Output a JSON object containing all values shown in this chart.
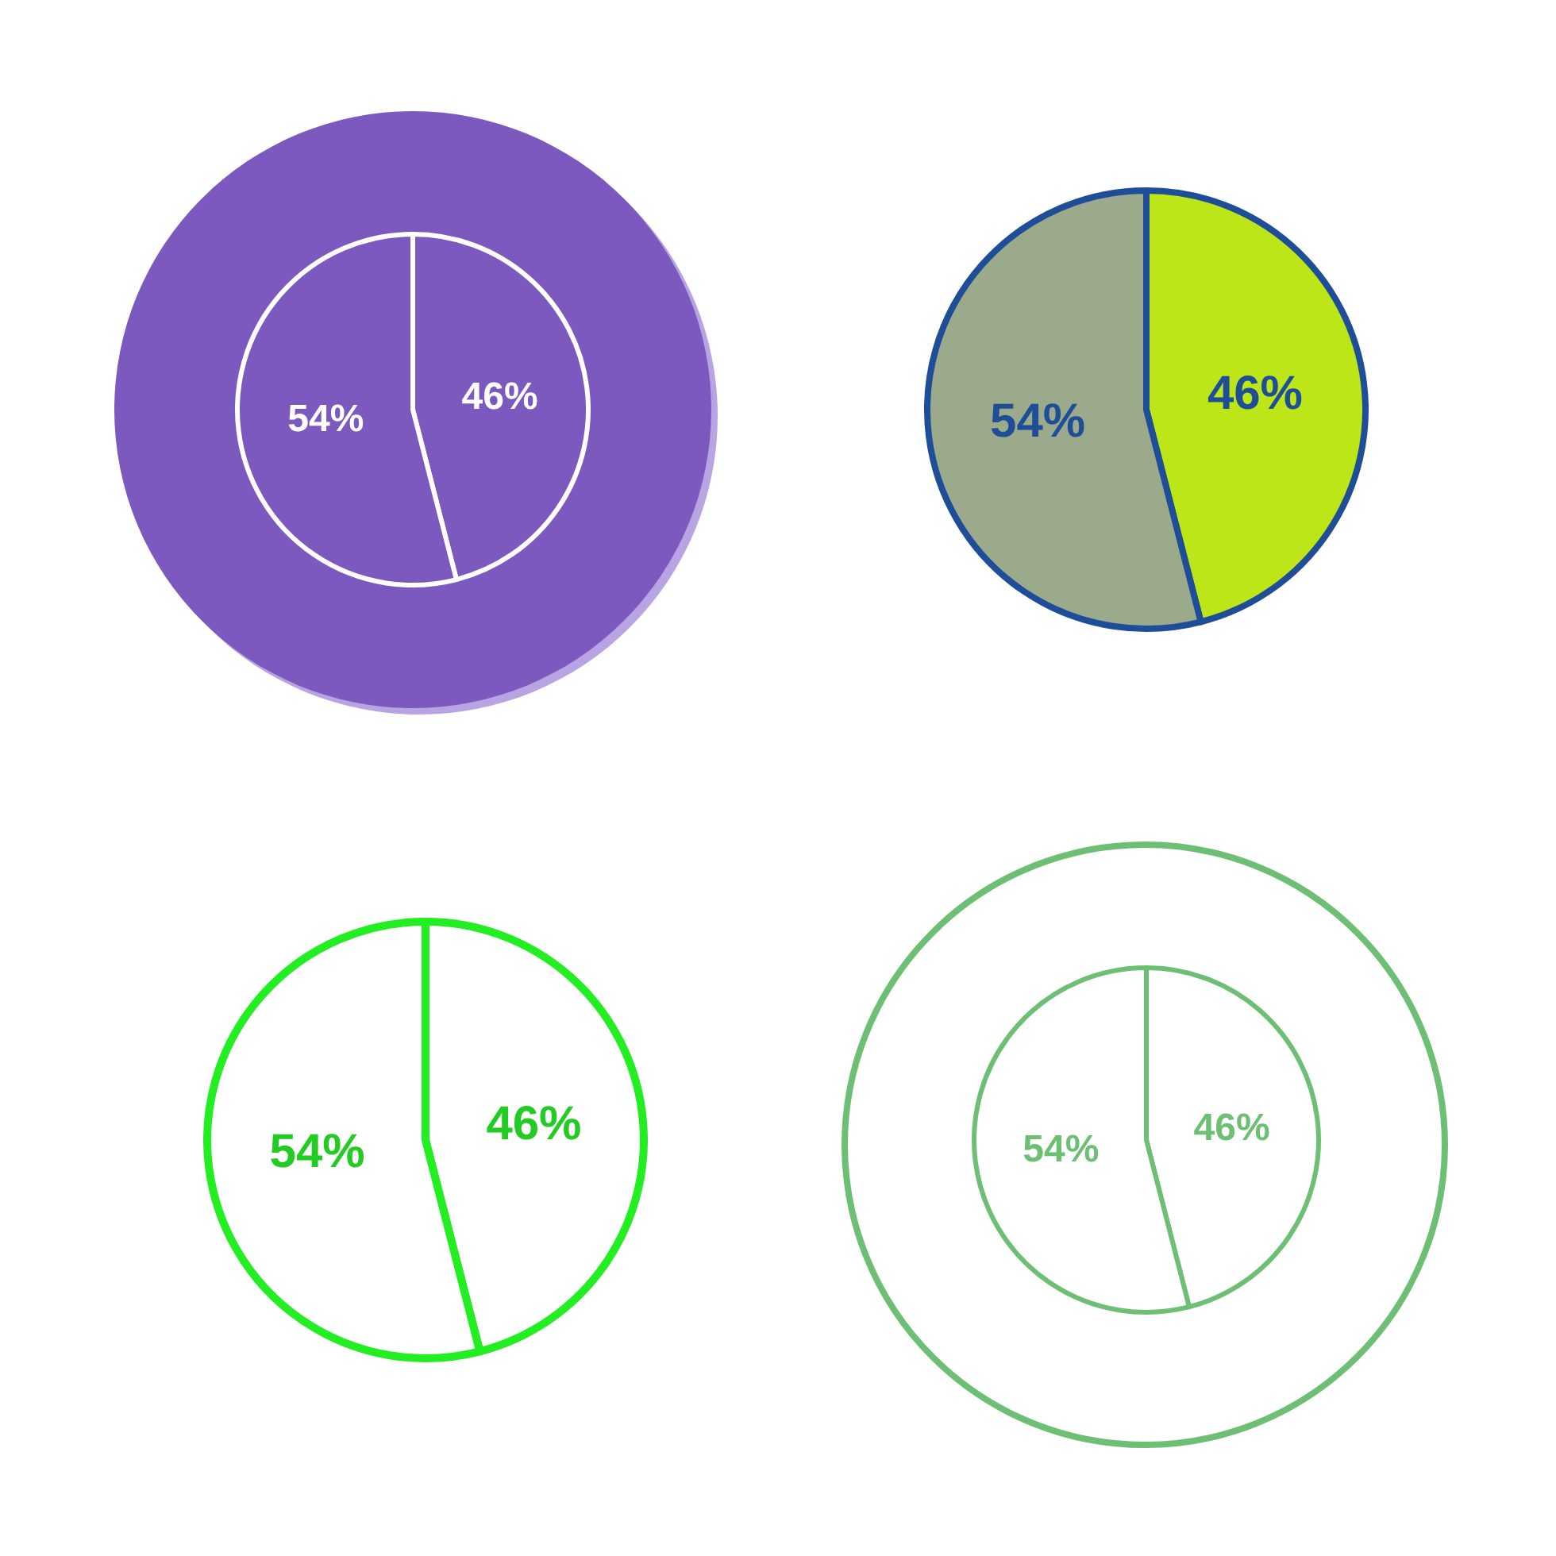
{
  "chart_data": [
    {
      "type": "pie",
      "categories": [
        null,
        null
      ],
      "values": [
        46,
        54
      ],
      "colors": [
        "#7b59bf",
        "#7b59bf"
      ],
      "value_labels": [
        "46%",
        "54%"
      ]
    },
    {
      "type": "pie",
      "categories": [
        null,
        null
      ],
      "values": [
        46,
        54
      ],
      "colors": [
        "#bde619",
        "#9aaa8a"
      ],
      "value_labels": [
        "46%",
        "54%"
      ]
    },
    {
      "type": "pie",
      "categories": [
        null,
        null
      ],
      "values": [
        46,
        54
      ],
      "colors": [
        "#ffffff",
        "#ffffff"
      ],
      "value_labels": [
        "46%",
        "54%"
      ]
    },
    {
      "type": "pie",
      "categories": [
        null,
        null
      ],
      "values": [
        46,
        54
      ],
      "colors": [
        "#ffffff",
        "#ffffff"
      ],
      "value_labels": [
        "46%",
        "54%"
      ]
    }
  ]
}
